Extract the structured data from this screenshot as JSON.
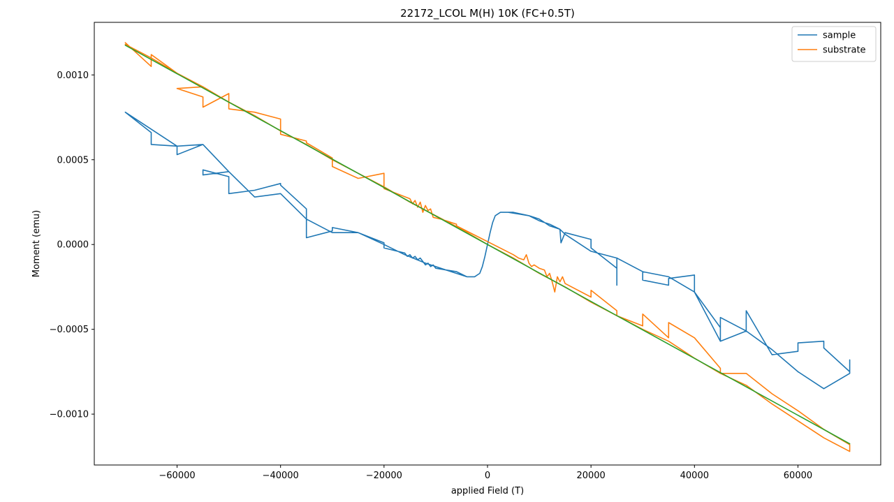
{
  "chart_data": {
    "type": "line",
    "title": "22172_LCOL M(H) 10K (FC+0.5T)",
    "xlabel": "applied Field (T)",
    "ylabel": "Moment (emu)",
    "xlim": [
      -76000,
      76000
    ],
    "ylim": [
      -0.0013,
      0.00131
    ],
    "xticks": [
      -60000,
      -40000,
      -20000,
      0,
      20000,
      40000,
      60000
    ],
    "xtick_labels": [
      "−60000",
      "−40000",
      "−20000",
      "0",
      "20000",
      "40000",
      "60000"
    ],
    "yticks": [
      -0.001,
      -0.0005,
      0.0,
      0.0005,
      0.001
    ],
    "ytick_labels": [
      "−0.0010",
      "−0.0005",
      "0.0000",
      "0.0005",
      "0.0010"
    ],
    "grid": false,
    "legend_position": "top-right",
    "series": [
      {
        "name": "sample",
        "color": "#1f77b4",
        "points": [
          [
            -70000,
            0.00078
          ],
          [
            -65000,
            0.00066
          ],
          [
            -65000,
            0.00059
          ],
          [
            -60000,
            0.00058
          ],
          [
            -60000,
            0.00053
          ],
          [
            -55000,
            0.00059
          ],
          [
            -50000,
            0.00043
          ],
          [
            -55000,
            0.00041
          ],
          [
            -55000,
            0.00044
          ],
          [
            -50000,
            0.0004
          ],
          [
            -50000,
            0.0003
          ],
          [
            -45000,
            0.00032
          ],
          [
            -40000,
            0.00036
          ],
          [
            -40000,
            0.00035
          ],
          [
            -35000,
            0.00021
          ],
          [
            -35000,
            4e-05
          ],
          [
            -30000,
            8e-05
          ],
          [
            -30000,
            0.0001
          ],
          [
            -25000,
            7e-05
          ],
          [
            -20000,
            1e-05
          ],
          [
            -20000,
            -2e-05
          ],
          [
            -16000,
            -5e-05
          ],
          [
            -15500,
            -7e-05
          ],
          [
            -15000,
            -6e-05
          ],
          [
            -14500,
            -8e-05
          ],
          [
            -14000,
            -7e-05
          ],
          [
            -13500,
            -9e-05
          ],
          [
            -13000,
            -8e-05
          ],
          [
            -12500,
            -0.0001
          ],
          [
            -12000,
            -0.00012
          ],
          [
            -11500,
            -0.00011
          ],
          [
            -11000,
            -0.00013
          ],
          [
            -10500,
            -0.00012
          ],
          [
            -10000,
            -0.00014
          ],
          [
            -8000,
            -0.00015
          ],
          [
            -6000,
            -0.00016
          ],
          [
            -4000,
            -0.00019
          ],
          [
            -2500,
            -0.00019
          ],
          [
            -1500,
            -0.00017
          ],
          [
            -1000,
            -0.00013
          ],
          [
            -500,
            -7e-05
          ],
          [
            0,
            0.0
          ],
          [
            500,
            7e-05
          ],
          [
            1000,
            0.00013
          ],
          [
            1500,
            0.00017
          ],
          [
            2500,
            0.00019
          ],
          [
            4000,
            0.00019
          ],
          [
            6000,
            0.00018
          ],
          [
            8000,
            0.00017
          ],
          [
            9000,
            0.00016
          ],
          [
            10000,
            0.00015
          ],
          [
            11000,
            0.00013
          ],
          [
            12000,
            0.00011
          ],
          [
            13000,
            0.0001
          ],
          [
            14000,
            9e-05
          ],
          [
            14200,
            1e-05
          ],
          [
            15000,
            7e-05
          ],
          [
            20000,
            3e-05
          ],
          [
            20000,
            -2e-05
          ],
          [
            25000,
            -0.00014
          ],
          [
            25000,
            -0.00024
          ],
          [
            25000,
            -8e-05
          ],
          [
            30000,
            -0.00016
          ],
          [
            30000,
            -0.00021
          ],
          [
            35000,
            -0.00024
          ],
          [
            35000,
            -0.0002
          ],
          [
            40000,
            -0.00018
          ],
          [
            40000,
            -0.00028
          ],
          [
            45000,
            -0.00057
          ],
          [
            45000,
            -0.00043
          ],
          [
            50000,
            -0.00051
          ],
          [
            50000,
            -0.00039
          ],
          [
            55000,
            -0.00065
          ],
          [
            60000,
            -0.00063
          ],
          [
            60000,
            -0.00058
          ],
          [
            65000,
            -0.00057
          ],
          [
            65000,
            -0.00061
          ],
          [
            70000,
            -0.00075
          ],
          [
            70000,
            -0.00068
          ],
          [
            70000,
            -0.00076
          ],
          [
            65000,
            -0.00085
          ],
          [
            60000,
            -0.00075
          ],
          [
            55000,
            -0.00062
          ],
          [
            50000,
            -0.00051
          ],
          [
            45000,
            -0.00057
          ],
          [
            45000,
            -0.00049
          ],
          [
            40000,
            -0.00028
          ],
          [
            35000,
            -0.00019
          ],
          [
            30000,
            -0.00016
          ],
          [
            25000,
            -8e-05
          ],
          [
            20000,
            -4e-05
          ],
          [
            15000,
            6e-05
          ],
          [
            14000,
            9e-05
          ],
          [
            12000,
            0.00012
          ],
          [
            10000,
            0.00014
          ],
          [
            8000,
            0.00017
          ],
          [
            5000,
            0.00019
          ],
          [
            2500,
            0.00019
          ],
          [
            1500,
            0.00017
          ],
          [
            1000,
            0.00013
          ],
          [
            500,
            7e-05
          ],
          [
            0,
            0.0
          ],
          [
            -500,
            -7e-05
          ],
          [
            -1000,
            -0.00013
          ],
          [
            -1500,
            -0.00017
          ],
          [
            -2500,
            -0.00019
          ],
          [
            -4000,
            -0.00019
          ],
          [
            -8000,
            -0.00015
          ],
          [
            -12000,
            -0.00011
          ],
          [
            -16000,
            -6e-05
          ],
          [
            -20000,
            0.0
          ],
          [
            -25000,
            7e-05
          ],
          [
            -30000,
            7e-05
          ],
          [
            -35000,
            0.00015
          ],
          [
            -40000,
            0.0003
          ],
          [
            -45000,
            0.00028
          ],
          [
            -50000,
            0.00043
          ],
          [
            -55000,
            0.00059
          ],
          [
            -60000,
            0.00058
          ],
          [
            -70000,
            0.00078
          ]
        ]
      },
      {
        "name": "substrate",
        "color": "#ff7f0e",
        "points": [
          [
            -70000,
            0.00119
          ],
          [
            -65000,
            0.00105
          ],
          [
            -65000,
            0.00112
          ],
          [
            -60000,
            0.00101
          ],
          [
            -55000,
            0.00093
          ],
          [
            -60000,
            0.00092
          ],
          [
            -55000,
            0.00087
          ],
          [
            -55000,
            0.00081
          ],
          [
            -50000,
            0.00089
          ],
          [
            -50000,
            0.0008
          ],
          [
            -45000,
            0.00078
          ],
          [
            -40000,
            0.00074
          ],
          [
            -40000,
            0.00065
          ],
          [
            -35000,
            0.00061
          ],
          [
            -35000,
            0.0006
          ],
          [
            -30000,
            0.00051
          ],
          [
            -30000,
            0.00046
          ],
          [
            -25000,
            0.00039
          ],
          [
            -20000,
            0.00042
          ],
          [
            -20000,
            0.00033
          ],
          [
            -15000,
            0.00027
          ],
          [
            -14500,
            0.00024
          ],
          [
            -14000,
            0.00026
          ],
          [
            -13500,
            0.00022
          ],
          [
            -13000,
            0.00025
          ],
          [
            -12500,
            0.00019
          ],
          [
            -12000,
            0.00023
          ],
          [
            -11500,
            0.0002
          ],
          [
            -11000,
            0.00021
          ],
          [
            -10500,
            0.00016
          ],
          [
            -9000,
            0.00015
          ],
          [
            -6000,
            0.00012
          ],
          [
            -6000,
            0.00011
          ],
          [
            5000,
            -6e-05
          ],
          [
            6000,
            -8e-05
          ],
          [
            7000,
            -9e-05
          ],
          [
            7500,
            -6e-05
          ],
          [
            8000,
            -0.00011
          ],
          [
            8500,
            -0.00013
          ],
          [
            9000,
            -0.00012
          ],
          [
            10000,
            -0.00014
          ],
          [
            11000,
            -0.00015
          ],
          [
            11500,
            -0.00019
          ],
          [
            12000,
            -0.00017
          ],
          [
            12500,
            -0.00022
          ],
          [
            13000,
            -0.00028
          ],
          [
            13500,
            -0.00019
          ],
          [
            14000,
            -0.00022
          ],
          [
            14500,
            -0.00019
          ],
          [
            15000,
            -0.00023
          ],
          [
            20000,
            -0.00031
          ],
          [
            20000,
            -0.00027
          ],
          [
            25000,
            -0.00039
          ],
          [
            25000,
            -0.00042
          ],
          [
            30000,
            -0.00048
          ],
          [
            30000,
            -0.00041
          ],
          [
            35000,
            -0.00055
          ],
          [
            35000,
            -0.00046
          ],
          [
            40000,
            -0.00055
          ],
          [
            45000,
            -0.00073
          ],
          [
            45000,
            -0.00076
          ],
          [
            50000,
            -0.00076
          ],
          [
            55000,
            -0.00088
          ],
          [
            60000,
            -0.00098
          ],
          [
            65000,
            -0.00109
          ],
          [
            70000,
            -0.00118
          ],
          [
            70000,
            -0.00122
          ],
          [
            65000,
            -0.00114
          ],
          [
            60000,
            -0.00104
          ],
          [
            55000,
            -0.00094
          ],
          [
            50000,
            -0.00083
          ],
          [
            45000,
            -0.00076
          ],
          [
            40000,
            -0.00067
          ],
          [
            35000,
            -0.00057
          ],
          [
            30000,
            -0.0005
          ],
          [
            25000,
            -0.00042
          ],
          [
            20000,
            -0.00034
          ],
          [
            15000,
            -0.00025
          ],
          [
            10000,
            -0.00017
          ],
          [
            5000,
            -8e-05
          ],
          [
            0,
            0.0
          ],
          [
            -5000,
            9e-05
          ],
          [
            -10000,
            0.00017
          ],
          [
            -15000,
            0.00025
          ],
          [
            -20000,
            0.00034
          ],
          [
            -25000,
            0.00042
          ],
          [
            -30000,
            0.0005
          ],
          [
            -35000,
            0.00059
          ],
          [
            -40000,
            0.00067
          ],
          [
            -45000,
            0.00076
          ],
          [
            -50000,
            0.00084
          ],
          [
            -55000,
            0.00093
          ],
          [
            -60000,
            0.00101
          ],
          [
            -65000,
            0.0011
          ],
          [
            -70000,
            0.00118
          ]
        ]
      },
      {
        "color": "#2ca02c",
        "points": [
          [
            -70000,
            0.001175
          ],
          [
            70000,
            -0.001175
          ]
        ]
      }
    ]
  }
}
